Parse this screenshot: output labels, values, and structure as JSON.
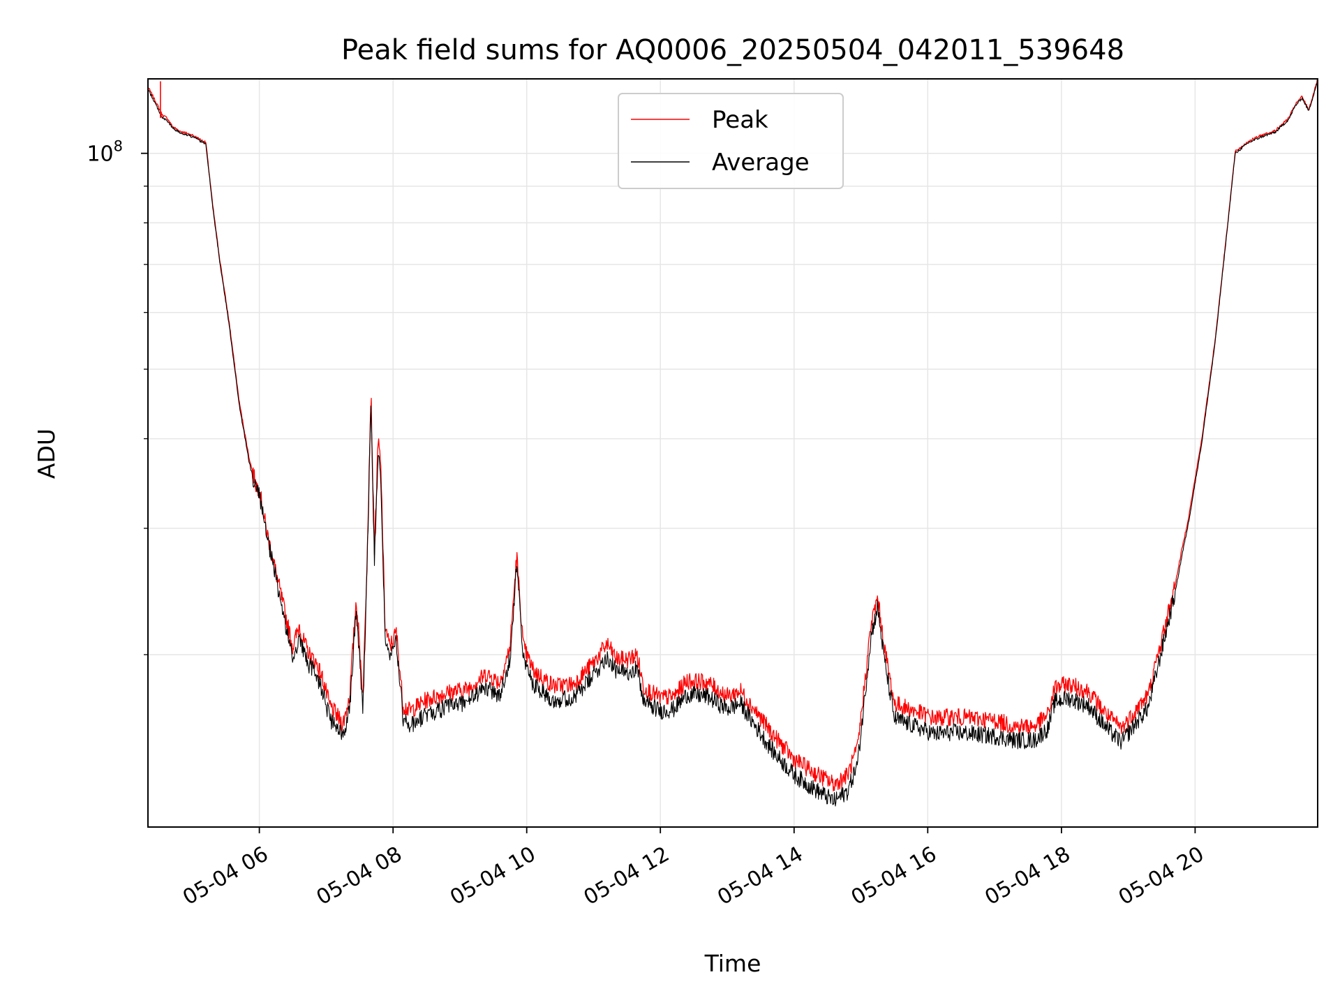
{
  "chart_data": {
    "type": "line",
    "title": "Peak field sums for AQ0006_20250504_042011_539648",
    "xlabel": "Time",
    "ylabel": "ADU",
    "y_scale": "log",
    "y_tick_label": {
      "base": "10",
      "exp": "8"
    },
    "xlim": [
      "05-04 04:20",
      "05-04 21:50"
    ],
    "ylim": [
      11500000,
      127000000
    ],
    "x_ticks": [
      "05-04 06",
      "05-04 08",
      "05-04 10",
      "05-04 12",
      "05-04 14",
      "05-04 16",
      "05-04 18",
      "05-04 20"
    ],
    "x_tick_hours": [
      6,
      8,
      10,
      12,
      14,
      16,
      18,
      20
    ],
    "y_major_ticks": [
      100000000
    ],
    "y_minor_ticks": [
      20000000,
      30000000,
      40000000,
      50000000,
      60000000,
      70000000,
      80000000,
      90000000
    ],
    "grid": true,
    "legend_position": "upper center",
    "x_hours": [
      4.33,
      4.45,
      4.55,
      4.62,
      4.7,
      4.8,
      5.0,
      5.2,
      5.3,
      5.4,
      5.55,
      5.7,
      5.85,
      5.95,
      6.0,
      6.1,
      6.25,
      6.4,
      6.5,
      6.6,
      6.65,
      6.75,
      6.85,
      6.95,
      7.05,
      7.15,
      7.25,
      7.35,
      7.45,
      7.55,
      7.6,
      7.67,
      7.72,
      7.78,
      7.82,
      7.88,
      7.95,
      8.05,
      8.15,
      8.25,
      8.5,
      8.8,
      9.1,
      9.4,
      9.6,
      9.75,
      9.85,
      9.95,
      10.1,
      10.4,
      10.7,
      11.0,
      11.2,
      11.35,
      11.5,
      11.65,
      11.75,
      12.0,
      12.2,
      12.4,
      12.7,
      13.0,
      13.2,
      13.4,
      13.7,
      14.0,
      14.3,
      14.6,
      14.8,
      14.95,
      15.05,
      15.15,
      15.25,
      15.35,
      15.5,
      15.8,
      16.1,
      16.4,
      16.7,
      17.0,
      17.3,
      17.6,
      17.8,
      17.9,
      18.1,
      18.4,
      18.7,
      18.9,
      19.1,
      19.3,
      19.5,
      19.7,
      19.8,
      19.9,
      20.1,
      20.3,
      20.5,
      20.6,
      20.8,
      21.0,
      21.2,
      21.4,
      21.5,
      21.6,
      21.7,
      21.83
    ],
    "series": [
      {
        "name": "Peak",
        "color": "#ff0000",
        "values": [
          124000000,
          118000000,
          113000000,
          112000000,
          109000000,
          107500000,
          106000000,
          103500000,
          85000000,
          72000000,
          58000000,
          45000000,
          37500000,
          34500000,
          34000000,
          30000000,
          26000000,
          22500000,
          20500000,
          22000000,
          21000000,
          20000000,
          19500000,
          18500000,
          17000000,
          16500000,
          16000000,
          17500000,
          24000000,
          17500000,
          25000000,
          46500000,
          28000000,
          40000000,
          36000000,
          22000000,
          20500000,
          21500000,
          17000000,
          16700000,
          17300000,
          17700000,
          17900000,
          18800000,
          18300000,
          20500000,
          27500000,
          20500000,
          19000000,
          18100000,
          18200000,
          19500000,
          20700000,
          19700000,
          19700000,
          20000000,
          18000000,
          17400000,
          17500000,
          18400000,
          18300000,
          17500000,
          17800000,
          16800000,
          15400000,
          14300000,
          13700000,
          13200000,
          13600000,
          14800000,
          18000000,
          22000000,
          24000000,
          20500000,
          17100000,
          16700000,
          16300000,
          16400000,
          16300000,
          16200000,
          15900000,
          15900000,
          16500000,
          18000000,
          18200000,
          17800000,
          16400000,
          15800000,
          16700000,
          17600000,
          21000000,
          25000000,
          28000000,
          31000000,
          40000000,
          55000000,
          82000000,
          100500000,
          104000000,
          106000000,
          107500000,
          112000000,
          117000000,
          120000000,
          115000000,
          126500000
        ]
      },
      {
        "name": "Average",
        "color": "#000000",
        "values": [
          123000000,
          117000000,
          112000000,
          111000000,
          108500000,
          107000000,
          105500000,
          103000000,
          84500000,
          71500000,
          57500000,
          44500000,
          37000000,
          34000000,
          33500000,
          29500000,
          25500000,
          21800000,
          19700000,
          21200000,
          20300000,
          19300000,
          18800000,
          17800000,
          16300000,
          15800000,
          15400000,
          16900000,
          23200000,
          16800000,
          24200000,
          45000000,
          27000000,
          38500000,
          34500000,
          21200000,
          19800000,
          20800000,
          16300000,
          15900000,
          16500000,
          16900000,
          17200000,
          18000000,
          17500000,
          19800000,
          26800000,
          19700000,
          18200000,
          17300000,
          17400000,
          18700000,
          19900000,
          18900000,
          18900000,
          19200000,
          17200000,
          16700000,
          16800000,
          17600000,
          17500000,
          16800000,
          17100000,
          16000000,
          14600000,
          13600000,
          13000000,
          12500000,
          12900000,
          14100000,
          17200000,
          21200000,
          23300000,
          19700000,
          16300000,
          15900000,
          15500000,
          15600000,
          15500000,
          15400000,
          15200000,
          15200000,
          15800000,
          17200000,
          17400000,
          17000000,
          15700000,
          15100000,
          16000000,
          16900000,
          20300000,
          24400000,
          27400000,
          30500000,
          39500000,
          54500000,
          81500000,
          100000000,
          103500000,
          105500000,
          107000000,
          111500000,
          116500000,
          119500000,
          114500000,
          126000000
        ]
      }
    ]
  }
}
